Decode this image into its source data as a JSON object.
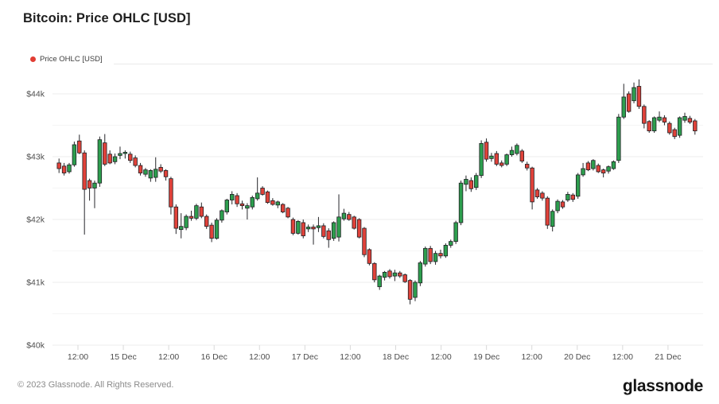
{
  "title": "Bitcoin: Price OHLC [USD]",
  "legend": {
    "label": "Price OHLC [USD]",
    "dot_color": "#e13d33"
  },
  "footer": {
    "copyright": "© 2023 Glassnode. All Rights Reserved.",
    "brand": "glassnode"
  },
  "chart_data": {
    "type": "candlestick-ohlc",
    "title": "Bitcoin: Price OHLC [USD]",
    "series_name": "Price OHLC [USD]",
    "currency": "USD",
    "up_color": "#2d9e4e",
    "down_color": "#e0423a",
    "wick_color": "#26262a",
    "grid": true,
    "legend_position": "top-left",
    "y_axis": {
      "labels": [
        "$44k",
        "$43k",
        "$42k",
        "$41k",
        "$40k"
      ],
      "values": [
        44000,
        43000,
        42000,
        41000,
        40000
      ],
      "minor_step": 500,
      "min": 39950,
      "max": 44300
    },
    "x_axis": {
      "labels": [
        "12:00",
        "15 Dec",
        "12:00",
        "16 Dec",
        "12:00",
        "17 Dec",
        "12:00",
        "18 Dec",
        "12:00",
        "19 Dec",
        "12:00",
        "20 Dec",
        "12:00",
        "21 Dec"
      ]
    },
    "candles_format": [
      "open",
      "high",
      "low",
      "close"
    ],
    "candles": [
      [
        42900,
        42970,
        42740,
        42810
      ],
      [
        42850,
        42900,
        42700,
        42740
      ],
      [
        42760,
        42900,
        42730,
        42870
      ],
      [
        42870,
        43240,
        42840,
        43190
      ],
      [
        43250,
        43350,
        43040,
        43060
      ],
      [
        43060,
        43100,
        41760,
        42480
      ],
      [
        42620,
        42650,
        42300,
        42500
      ],
      [
        42500,
        42620,
        42180,
        42580
      ],
      [
        42580,
        43320,
        42520,
        43270
      ],
      [
        43220,
        43360,
        42850,
        42880
      ],
      [
        43040,
        43100,
        42880,
        42900
      ],
      [
        42920,
        43050,
        42880,
        43000
      ],
      [
        43020,
        43160,
        42960,
        43050
      ],
      [
        43050,
        43100,
        42970,
        43070
      ],
      [
        43040,
        43080,
        42900,
        42940
      ],
      [
        42980,
        43020,
        42830,
        42860
      ],
      [
        42860,
        42900,
        42700,
        42740
      ],
      [
        42720,
        42820,
        42680,
        42790
      ],
      [
        42660,
        42800,
        42600,
        42780
      ],
      [
        42670,
        42990,
        42600,
        42800
      ],
      [
        42830,
        42880,
        42740,
        42770
      ],
      [
        42780,
        42800,
        42620,
        42680
      ],
      [
        42650,
        42680,
        42080,
        42200
      ],
      [
        42200,
        42240,
        41770,
        41860
      ],
      [
        41840,
        42100,
        41700,
        41890
      ],
      [
        41870,
        42080,
        41830,
        42050
      ],
      [
        42050,
        42140,
        41980,
        42020
      ],
      [
        42020,
        42250,
        41990,
        42220
      ],
      [
        42200,
        42270,
        42020,
        42050
      ],
      [
        42050,
        42080,
        41850,
        41890
      ],
      [
        41910,
        41950,
        41640,
        41700
      ],
      [
        41700,
        42020,
        41680,
        41990
      ],
      [
        41990,
        42160,
        41950,
        42140
      ],
      [
        42120,
        42330,
        42080,
        42310
      ],
      [
        42310,
        42450,
        42240,
        42400
      ],
      [
        42380,
        42420,
        42200,
        42250
      ],
      [
        42250,
        42300,
        42160,
        42220
      ],
      [
        42180,
        42260,
        42000,
        42220
      ],
      [
        42200,
        42380,
        42160,
        42350
      ],
      [
        42330,
        42670,
        42300,
        42420
      ],
      [
        42500,
        42530,
        42380,
        42400
      ],
      [
        42440,
        42460,
        42250,
        42270
      ],
      [
        42300,
        42340,
        42220,
        42240
      ],
      [
        42230,
        42300,
        42180,
        42280
      ],
      [
        42240,
        42260,
        42100,
        42120
      ],
      [
        42180,
        42200,
        42020,
        42040
      ],
      [
        42000,
        42030,
        41750,
        41780
      ],
      [
        41780,
        41990,
        41760,
        41970
      ],
      [
        41950,
        42000,
        41700,
        41740
      ],
      [
        41850,
        41920,
        41800,
        41880
      ],
      [
        41880,
        41920,
        41600,
        41850
      ],
      [
        41870,
        42040,
        41800,
        41900
      ],
      [
        41900,
        41940,
        41700,
        41730
      ],
      [
        41820,
        41860,
        41550,
        41680
      ],
      [
        41700,
        41970,
        41660,
        41950
      ],
      [
        41720,
        42400,
        41650,
        42040
      ],
      [
        42010,
        42170,
        41980,
        42100
      ],
      [
        42080,
        42120,
        41980,
        42000
      ],
      [
        42040,
        42060,
        41840,
        41860
      ],
      [
        42000,
        42020,
        41700,
        41720
      ],
      [
        41860,
        41880,
        41400,
        41440
      ],
      [
        41520,
        41540,
        41270,
        41300
      ],
      [
        41300,
        41320,
        41000,
        41040
      ],
      [
        40930,
        41120,
        40880,
        41100
      ],
      [
        41080,
        41180,
        41030,
        41160
      ],
      [
        41180,
        41210,
        41060,
        41090
      ],
      [
        41100,
        41200,
        41020,
        41150
      ],
      [
        41150,
        41180,
        41070,
        41100
      ],
      [
        41120,
        41140,
        40990,
        41010
      ],
      [
        41030,
        41050,
        40650,
        40730
      ],
      [
        40760,
        41030,
        40700,
        41000
      ],
      [
        40990,
        41340,
        40940,
        41310
      ],
      [
        41290,
        41570,
        41250,
        41540
      ],
      [
        41540,
        41580,
        41290,
        41330
      ],
      [
        41330,
        41500,
        41280,
        41460
      ],
      [
        41460,
        41520,
        41380,
        41420
      ],
      [
        41420,
        41620,
        41390,
        41590
      ],
      [
        41590,
        41680,
        41550,
        41650
      ],
      [
        41650,
        41980,
        41610,
        41950
      ],
      [
        41950,
        42620,
        41910,
        42580
      ],
      [
        42560,
        42700,
        42450,
        42640
      ],
      [
        42620,
        42670,
        42440,
        42490
      ],
      [
        42510,
        42740,
        42470,
        42700
      ],
      [
        42700,
        43260,
        42660,
        43210
      ],
      [
        43230,
        43290,
        42920,
        42960
      ],
      [
        42970,
        43060,
        42920,
        43010
      ],
      [
        43050,
        43090,
        42850,
        42880
      ],
      [
        42900,
        42940,
        42830,
        42860
      ],
      [
        42880,
        43050,
        42850,
        43030
      ],
      [
        43030,
        43160,
        43000,
        43100
      ],
      [
        43050,
        43210,
        43020,
        43180
      ],
      [
        43090,
        43120,
        42900,
        42930
      ],
      [
        42880,
        42920,
        42780,
        42820
      ],
      [
        42820,
        42840,
        42160,
        42280
      ],
      [
        42470,
        42500,
        42330,
        42360
      ],
      [
        42420,
        42450,
        42300,
        42340
      ],
      [
        42340,
        42370,
        41850,
        41910
      ],
      [
        41890,
        42160,
        41810,
        42130
      ],
      [
        42140,
        42320,
        42100,
        42290
      ],
      [
        42280,
        42310,
        42170,
        42200
      ],
      [
        42310,
        42440,
        42280,
        42400
      ],
      [
        42390,
        42420,
        42280,
        42320
      ],
      [
        42370,
        42740,
        42330,
        42710
      ],
      [
        42710,
        42900,
        42680,
        42810
      ],
      [
        42900,
        42930,
        42770,
        42790
      ],
      [
        42810,
        42960,
        42780,
        42940
      ],
      [
        42860,
        42890,
        42740,
        42760
      ],
      [
        42790,
        42810,
        42670,
        42740
      ],
      [
        42770,
        42860,
        42730,
        42840
      ],
      [
        42810,
        42940,
        42790,
        42920
      ],
      [
        42940,
        43680,
        42900,
        43630
      ],
      [
        43630,
        44160,
        43600,
        43950
      ],
      [
        44000,
        44040,
        43700,
        43720
      ],
      [
        43890,
        44180,
        43850,
        44100
      ],
      [
        44120,
        44230,
        43760,
        43800
      ],
      [
        43800,
        43830,
        43450,
        43530
      ],
      [
        43560,
        43580,
        43380,
        43410
      ],
      [
        43410,
        43640,
        43380,
        43620
      ],
      [
        43580,
        43720,
        43550,
        43630
      ],
      [
        43620,
        43660,
        43500,
        43550
      ],
      [
        43530,
        43560,
        43350,
        43380
      ],
      [
        43430,
        43460,
        43280,
        43320
      ],
      [
        43340,
        43640,
        43300,
        43620
      ],
      [
        43580,
        43700,
        43540,
        43640
      ],
      [
        43610,
        43650,
        43520,
        43550
      ],
      [
        43570,
        43600,
        43350,
        43410
      ]
    ]
  }
}
